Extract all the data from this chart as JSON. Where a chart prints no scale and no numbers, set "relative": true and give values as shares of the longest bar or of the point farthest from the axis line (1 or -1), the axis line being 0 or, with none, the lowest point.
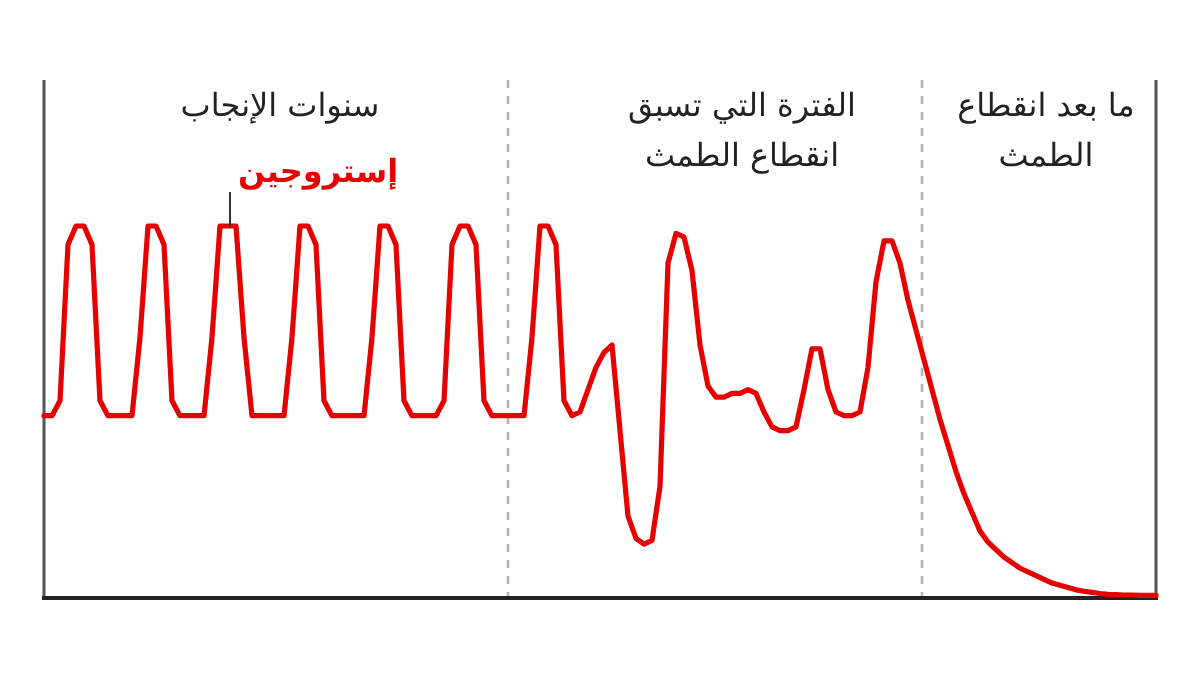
{
  "chart_data": {
    "type": "line",
    "relative": true,
    "marker": "none",
    "categories": [
      null,
      null,
      null,
      null,
      null,
      null,
      null,
      null,
      null,
      null,
      null,
      null,
      null,
      null,
      null,
      null,
      null,
      null,
      null,
      null,
      null,
      null,
      null,
      null,
      null,
      null,
      null,
      null,
      null,
      null,
      null,
      null,
      null,
      null,
      null,
      null,
      null,
      null,
      null,
      null,
      null,
      null,
      null,
      null,
      null,
      null,
      null,
      null,
      null,
      null,
      null,
      null,
      null,
      null,
      null,
      null,
      null,
      null,
      null,
      null,
      null,
      null,
      null,
      null,
      null,
      null,
      null,
      null,
      null,
      null,
      null,
      null,
      null,
      null,
      null,
      null,
      null,
      null,
      null,
      null,
      null,
      null,
      null,
      null,
      null,
      null,
      null,
      null,
      null,
      null,
      null,
      null,
      null,
      null,
      null,
      null,
      null,
      null,
      null,
      null,
      null,
      null,
      null,
      null,
      null,
      null,
      null,
      null,
      null,
      null,
      null,
      null,
      null,
      null,
      null,
      null,
      null,
      null,
      null,
      null,
      null,
      null,
      null,
      null,
      null,
      null,
      null,
      null,
      null,
      null,
      null,
      null,
      null,
      null,
      null,
      null,
      null,
      null,
      null,
      null
    ],
    "series": [
      {
        "name": "إستروجين",
        "color": "#e60000",
        "values": [
          0.49,
          0.49,
          0.53,
          0.95,
          1,
          1,
          0.95,
          0.53,
          0.49,
          0.49,
          0.49,
          0.49,
          0.7,
          1,
          1,
          0.95,
          0.53,
          0.49,
          0.49,
          0.49,
          0.49,
          0.7,
          1,
          1,
          1,
          0.7,
          0.49,
          0.49,
          0.49,
          0.49,
          0.49,
          0.7,
          1,
          1,
          0.95,
          0.53,
          0.49,
          0.49,
          0.49,
          0.49,
          0.49,
          0.7,
          1,
          1,
          0.95,
          0.53,
          0.49,
          0.49,
          0.49,
          0.49,
          0.53,
          0.95,
          1,
          1,
          0.95,
          0.53,
          0.49,
          0.49,
          0.49,
          0.49,
          0.49,
          0.7,
          1,
          1,
          0.95,
          0.53,
          0.49,
          0.5,
          0.56,
          0.62,
          0.66,
          0.68,
          0.45,
          0.22,
          0.16,
          0.145,
          0.155,
          0.3,
          0.9,
          0.98,
          0.97,
          0.88,
          0.68,
          0.57,
          0.54,
          0.54,
          0.55,
          0.55,
          0.56,
          0.55,
          0.5,
          0.46,
          0.45,
          0.45,
          0.46,
          0.56,
          0.67,
          0.67,
          0.56,
          0.5,
          0.49,
          0.49,
          0.5,
          0.62,
          0.85,
          0.96,
          0.96,
          0.9,
          0.8,
          0.72,
          0.64,
          0.56,
          0.48,
          0.41,
          0.34,
          0.28,
          0.23,
          0.18,
          0.15,
          0.13,
          0.11,
          0.095,
          0.08,
          0.07,
          0.06,
          0.05,
          0.04,
          0.034,
          0.028,
          0.022,
          0.018,
          0.015,
          0.012,
          0.01,
          0.009,
          0.008,
          0.008,
          0.007,
          0.007,
          0.007
        ]
      }
    ],
    "annotations": [
      "سنوات الإنجاب",
      "الفترة التي تسبق انقطاع الطمث",
      "ما بعد انقطاع الطمث"
    ]
  }
}
